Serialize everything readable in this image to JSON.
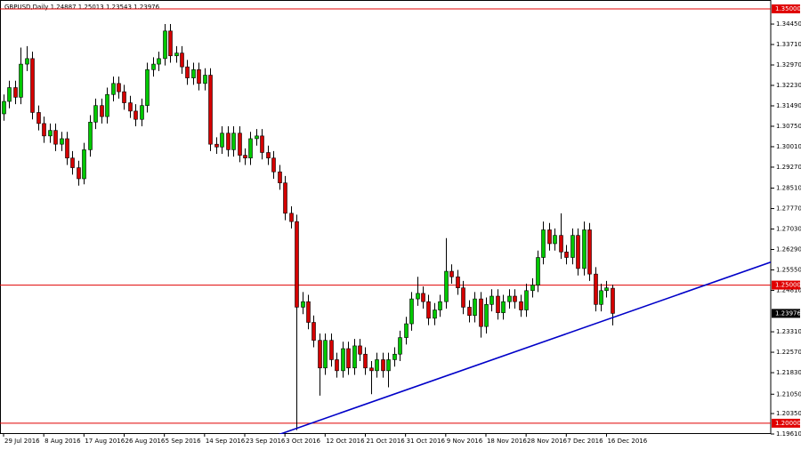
{
  "chart_data": {
    "type": "candlestick",
    "title": "GBPUSD,Daily",
    "categories": [
      "29 Jul 2016",
      null,
      null,
      null,
      null,
      null,
      null,
      "8 Aug 2016",
      null,
      null,
      null,
      null,
      null,
      null,
      "17 Aug 2016",
      null,
      null,
      null,
      null,
      null,
      null,
      "26 Aug 2016",
      null,
      null,
      null,
      null,
      null,
      null,
      "5 Sep 2016",
      null,
      null,
      null,
      null,
      null,
      null,
      "14 Sep 2016",
      null,
      null,
      null,
      null,
      null,
      null,
      "23 Sep 2016",
      null,
      null,
      null,
      null,
      null,
      null,
      "3 Oct 2016",
      null,
      null,
      null,
      null,
      null,
      null,
      "12 Oct 2016",
      null,
      null,
      null,
      null,
      null,
      null,
      "21 Oct 2016",
      null,
      null,
      null,
      null,
      null,
      null,
      "31 Oct 2016",
      null,
      null,
      null,
      null,
      null,
      null,
      "9 Nov 2016",
      null,
      null,
      null,
      null,
      null,
      null,
      "18 Nov 2016",
      null,
      null,
      null,
      null,
      null,
      null,
      "28 Nov 2016",
      null,
      null,
      null,
      null,
      null,
      null,
      "7 Dec 2016",
      null,
      null,
      null,
      null,
      null,
      null,
      "16 Dec 2016",
      null
    ],
    "open": [
      1.312,
      1.3165,
      1.3215,
      1.318,
      1.33,
      1.332,
      1.3125,
      1.3085,
      1.304,
      1.306,
      1.301,
      1.303,
      1.296,
      1.2925,
      1.2885,
      1.299,
      1.309,
      1.315,
      1.311,
      1.319,
      1.323,
      1.32,
      1.316,
      1.313,
      1.31,
      1.315,
      1.328,
      1.33,
      1.332,
      1.342,
      1.333,
      1.334,
      1.329,
      1.325,
      1.328,
      1.323,
      1.326,
      1.301,
      1.3,
      1.305,
      1.299,
      1.305,
      1.297,
      1.296,
      1.303,
      1.304,
      1.298,
      1.296,
      1.291,
      1.287,
      1.276,
      1.273,
      1.242,
      1.244,
      1.2365,
      1.23,
      1.22,
      1.23,
      1.223,
      1.219,
      1.227,
      1.22,
      1.228,
      1.225,
      1.22,
      1.219,
      1.223,
      1.219,
      1.223,
      1.225,
      1.231,
      1.236,
      1.245,
      1.247,
      1.244,
      1.238,
      1.241,
      1.244,
      1.255,
      1.253,
      1.249,
      1.242,
      1.239,
      1.245,
      1.235,
      1.243,
      1.246,
      1.24,
      1.244,
      1.246,
      1.244,
      1.241,
      1.248,
      1.25,
      1.26,
      1.27,
      1.265,
      1.268,
      1.262,
      1.26,
      1.268,
      1.256,
      1.27,
      1.254,
      1.243,
      1.248,
      1.24887
    ],
    "high": [
      1.319,
      1.324,
      1.324,
      1.336,
      1.3365,
      1.3345,
      1.315,
      1.311,
      1.3085,
      1.3085,
      1.3055,
      1.3055,
      1.2985,
      1.295,
      1.3015,
      1.3115,
      1.3175,
      1.3175,
      1.3215,
      1.3255,
      1.3255,
      1.3225,
      1.3185,
      1.3155,
      1.3175,
      1.3305,
      1.3325,
      1.3345,
      1.3445,
      1.3445,
      1.3365,
      1.3365,
      1.3315,
      1.3305,
      1.3305,
      1.3285,
      1.3285,
      1.3035,
      1.3075,
      1.3075,
      1.3075,
      1.3075,
      1.2995,
      1.3055,
      1.3065,
      1.3065,
      1.3005,
      1.2985,
      1.2935,
      1.2895,
      1.2785,
      1.2755,
      1.2475,
      1.2465,
      1.239,
      1.2325,
      1.2325,
      1.2325,
      1.2255,
      1.2295,
      1.2295,
      1.2305,
      1.2305,
      1.2275,
      1.2225,
      1.2255,
      1.2255,
      1.2255,
      1.2275,
      1.2335,
      1.2385,
      1.2475,
      1.253,
      1.2495,
      1.2465,
      1.2435,
      1.2465,
      1.267,
      1.2575,
      1.2555,
      1.2515,
      1.2445,
      1.2475,
      1.2475,
      1.2455,
      1.2485,
      1.2485,
      1.2465,
      1.2485,
      1.2485,
      1.2465,
      1.2505,
      1.2525,
      1.2625,
      1.273,
      1.2725,
      1.2705,
      1.276,
      1.2645,
      1.2705,
      1.2705,
      1.273,
      1.2725,
      1.2565,
      1.2505,
      1.2515,
      1.25013
    ],
    "low": [
      1.3095,
      1.314,
      1.3155,
      1.3155,
      1.3275,
      1.31,
      1.306,
      1.3015,
      1.3015,
      1.2985,
      1.2985,
      1.2935,
      1.29,
      1.286,
      1.2865,
      1.2965,
      1.3065,
      1.3085,
      1.3085,
      1.3165,
      1.3175,
      1.3135,
      1.3105,
      1.3075,
      1.3075,
      1.3125,
      1.3255,
      1.3275,
      1.3295,
      1.3305,
      1.3305,
      1.3265,
      1.3225,
      1.3225,
      1.3205,
      1.3205,
      1.2985,
      1.2975,
      1.2975,
      1.2965,
      1.2965,
      1.2945,
      1.2935,
      1.2935,
      1.3005,
      1.2955,
      1.2935,
      1.2885,
      1.2845,
      1.2735,
      1.2705,
      1.1975,
      1.2395,
      1.234,
      1.2275,
      1.21,
      1.2175,
      1.2205,
      1.2165,
      1.2165,
      1.2175,
      1.2175,
      1.2225,
      1.2175,
      1.2105,
      1.2165,
      1.2165,
      1.213,
      1.2205,
      1.2225,
      1.2285,
      1.2335,
      1.2425,
      1.2415,
      1.2355,
      1.2355,
      1.2385,
      1.2415,
      1.2505,
      1.2465,
      1.2395,
      1.2365,
      1.2365,
      1.231,
      1.2325,
      1.2405,
      1.2375,
      1.2375,
      1.2415,
      1.2415,
      1.2385,
      1.2385,
      1.2455,
      1.2475,
      1.2575,
      1.2625,
      1.2625,
      1.2595,
      1.2575,
      1.2575,
      1.2535,
      1.2535,
      1.2515,
      1.2405,
      1.2405,
      1.2455,
      1.23543
    ],
    "close": [
      1.3165,
      1.3215,
      1.318,
      1.33,
      1.332,
      1.3125,
      1.3085,
      1.304,
      1.306,
      1.301,
      1.303,
      1.296,
      1.2925,
      1.2885,
      1.299,
      1.309,
      1.315,
      1.311,
      1.319,
      1.323,
      1.32,
      1.316,
      1.313,
      1.31,
      1.315,
      1.328,
      1.33,
      1.332,
      1.342,
      1.333,
      1.334,
      1.329,
      1.325,
      1.328,
      1.323,
      1.326,
      1.301,
      1.3,
      1.305,
      1.299,
      1.305,
      1.297,
      1.296,
      1.303,
      1.304,
      1.298,
      1.296,
      1.291,
      1.287,
      1.276,
      1.273,
      1.242,
      1.244,
      1.2365,
      1.23,
      1.22,
      1.23,
      1.223,
      1.219,
      1.227,
      1.22,
      1.228,
      1.225,
      1.22,
      1.219,
      1.223,
      1.219,
      1.223,
      1.225,
      1.231,
      1.236,
      1.245,
      1.247,
      1.244,
      1.238,
      1.241,
      1.244,
      1.255,
      1.253,
      1.249,
      1.242,
      1.239,
      1.245,
      1.235,
      1.243,
      1.246,
      1.24,
      1.244,
      1.246,
      1.244,
      1.241,
      1.248,
      1.25,
      1.26,
      1.27,
      1.265,
      1.268,
      1.262,
      1.26,
      1.268,
      1.256,
      1.27,
      1.254,
      1.243,
      1.248,
      1.249,
      1.23976
    ],
    "up_color": "#00c800",
    "down_color": "#d40000",
    "xlim": [
      -0.62,
      133.6
    ],
    "ylim": [
      1.1961,
      1.3516
    ],
    "yticks": [
      {
        "value": 1.3445,
        "label": "1.34450"
      },
      {
        "value": 1.3371,
        "label": "1.33710"
      },
      {
        "value": 1.3297,
        "label": "1.32970"
      },
      {
        "value": 1.3223,
        "label": "1.32230"
      },
      {
        "value": 1.3149,
        "label": "1.31490"
      },
      {
        "value": 1.3075,
        "label": "1.30750"
      },
      {
        "value": 1.3001,
        "label": "1.30010"
      },
      {
        "value": 1.2927,
        "label": "1.29270"
      },
      {
        "value": 1.2851,
        "label": "1.28510"
      },
      {
        "value": 1.2777,
        "label": "1.27770"
      },
      {
        "value": 1.2703,
        "label": "1.27030"
      },
      {
        "value": 1.2629,
        "label": "1.26290"
      },
      {
        "value": 1.2555,
        "label": "1.25550"
      },
      {
        "value": 1.2481,
        "label": "1.24810"
      },
      {
        "value": 1.2331,
        "label": "1.23310"
      },
      {
        "value": 1.2257,
        "label": "1.22570"
      },
      {
        "value": 1.2183,
        "label": "1.21830"
      },
      {
        "value": 1.2105,
        "label": "1.21050"
      },
      {
        "value": 1.2035,
        "label": "1.20350"
      },
      {
        "value": 1.1961,
        "label": "1.19610"
      }
    ],
    "levels": [
      {
        "value": 1.35,
        "label": "1.35000"
      },
      {
        "value": 1.25,
        "label": "1.25000"
      },
      {
        "value": 1.2,
        "label": "1.20000"
      }
    ],
    "level_color": "#e00000",
    "trendline": {
      "x": [
        47.4,
        133.6
      ],
      "y": [
        1.1955,
        1.2583
      ],
      "color": "#0000c8"
    }
  }
}
